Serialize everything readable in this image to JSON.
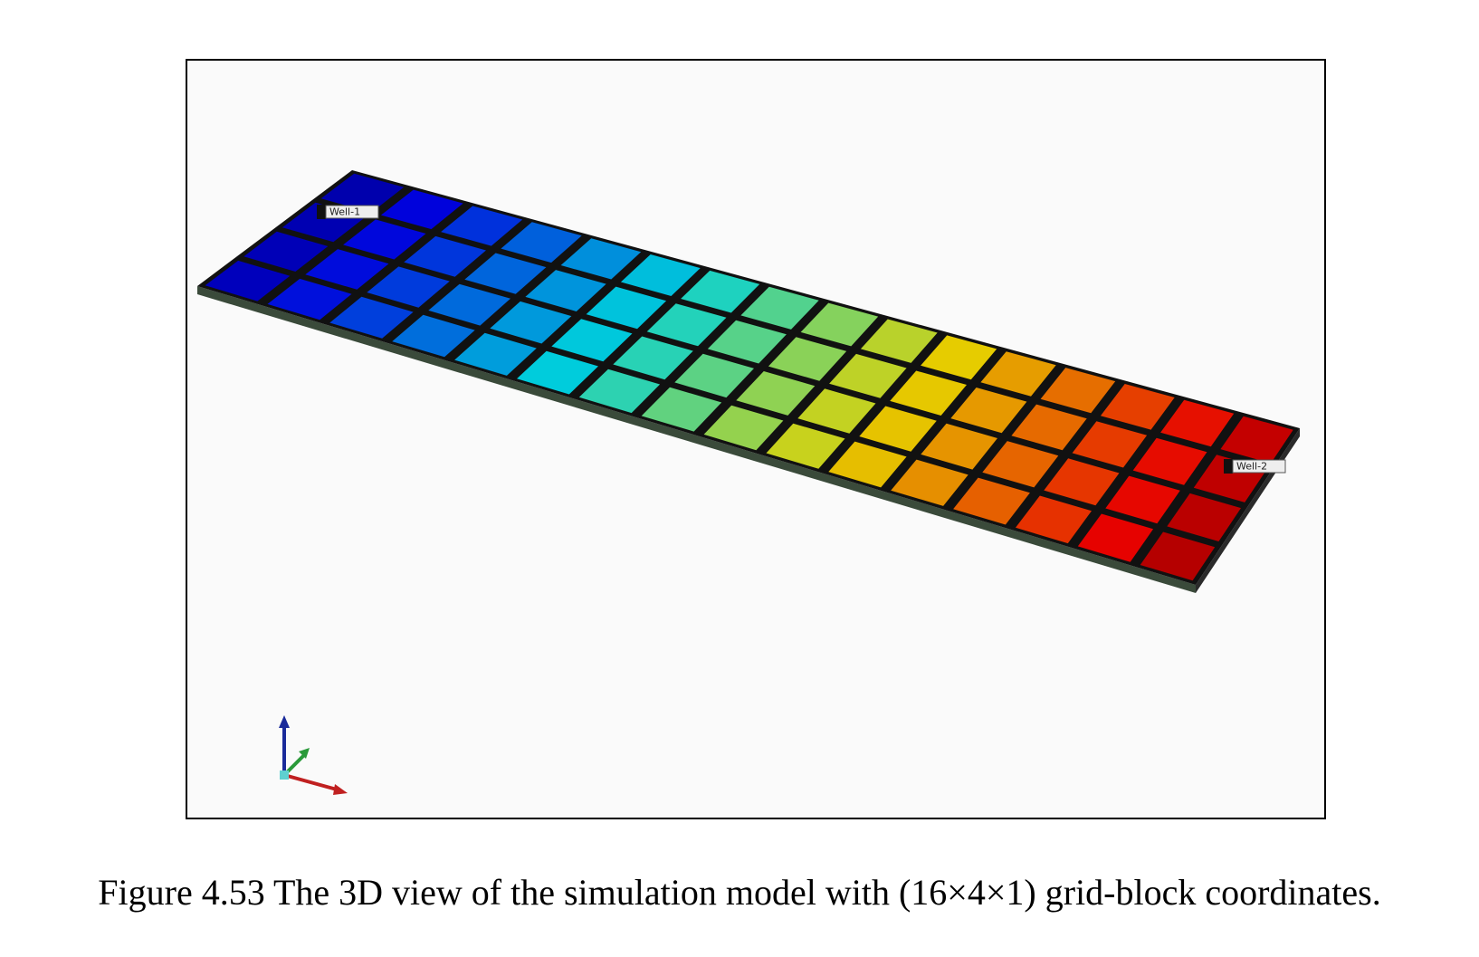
{
  "figure": {
    "well_labels": [
      "Well-1",
      "Well-2"
    ],
    "caption": "Figure 4.53 The 3D view of the simulation model with (16×4×1) grid-block coordinates."
  }
}
